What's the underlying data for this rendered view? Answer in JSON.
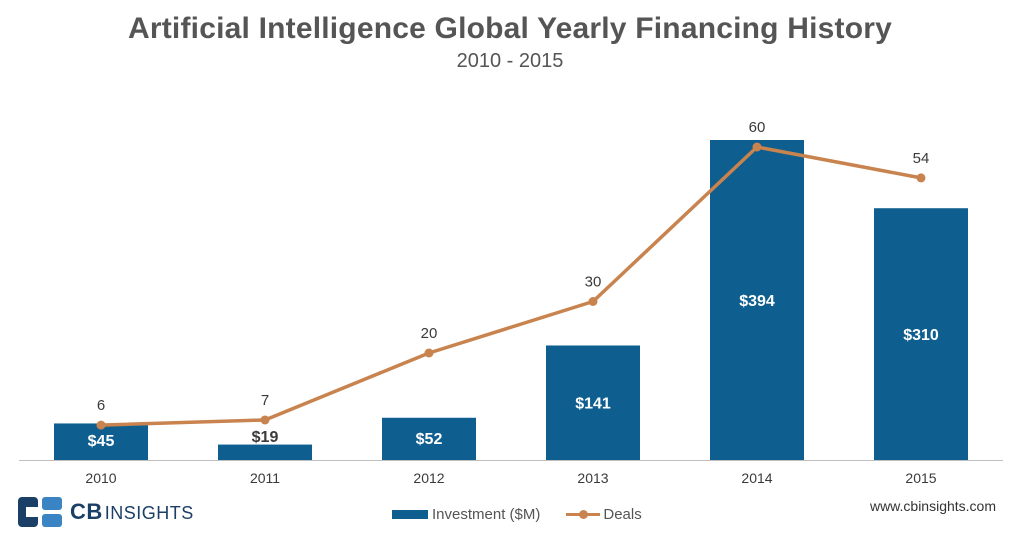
{
  "title": "Artificial Intelligence Global Yearly Financing History",
  "subtitle": "2010 - 2015",
  "brand": {
    "logo_text": "CB",
    "logo_text_light": "INSIGHTS",
    "logo_icon": "cb-insights-logo-icon",
    "website": "www.cbinsights.com"
  },
  "colors": {
    "bar": "#0e5f8f",
    "line": "#c8834e",
    "bar_label": "#ffffff",
    "axis": "#bfbfbf"
  },
  "chart_data": {
    "type": "bar",
    "categories": [
      "2010",
      "2011",
      "2012",
      "2013",
      "2014",
      "2015"
    ],
    "series": [
      {
        "name": "Investment ($M)",
        "type": "bar",
        "values": [
          45,
          19,
          52,
          141,
          394,
          310
        ],
        "labels": [
          "$45",
          "$19",
          "$52",
          "$141",
          "$394",
          "$310"
        ]
      },
      {
        "name": "Deals",
        "type": "line",
        "values": [
          6,
          7,
          20,
          30,
          60,
          54
        ],
        "labels": [
          "6",
          "7",
          "20",
          "30",
          "60",
          "54"
        ]
      }
    ],
    "legend": "bottom-center",
    "grid": false
  }
}
